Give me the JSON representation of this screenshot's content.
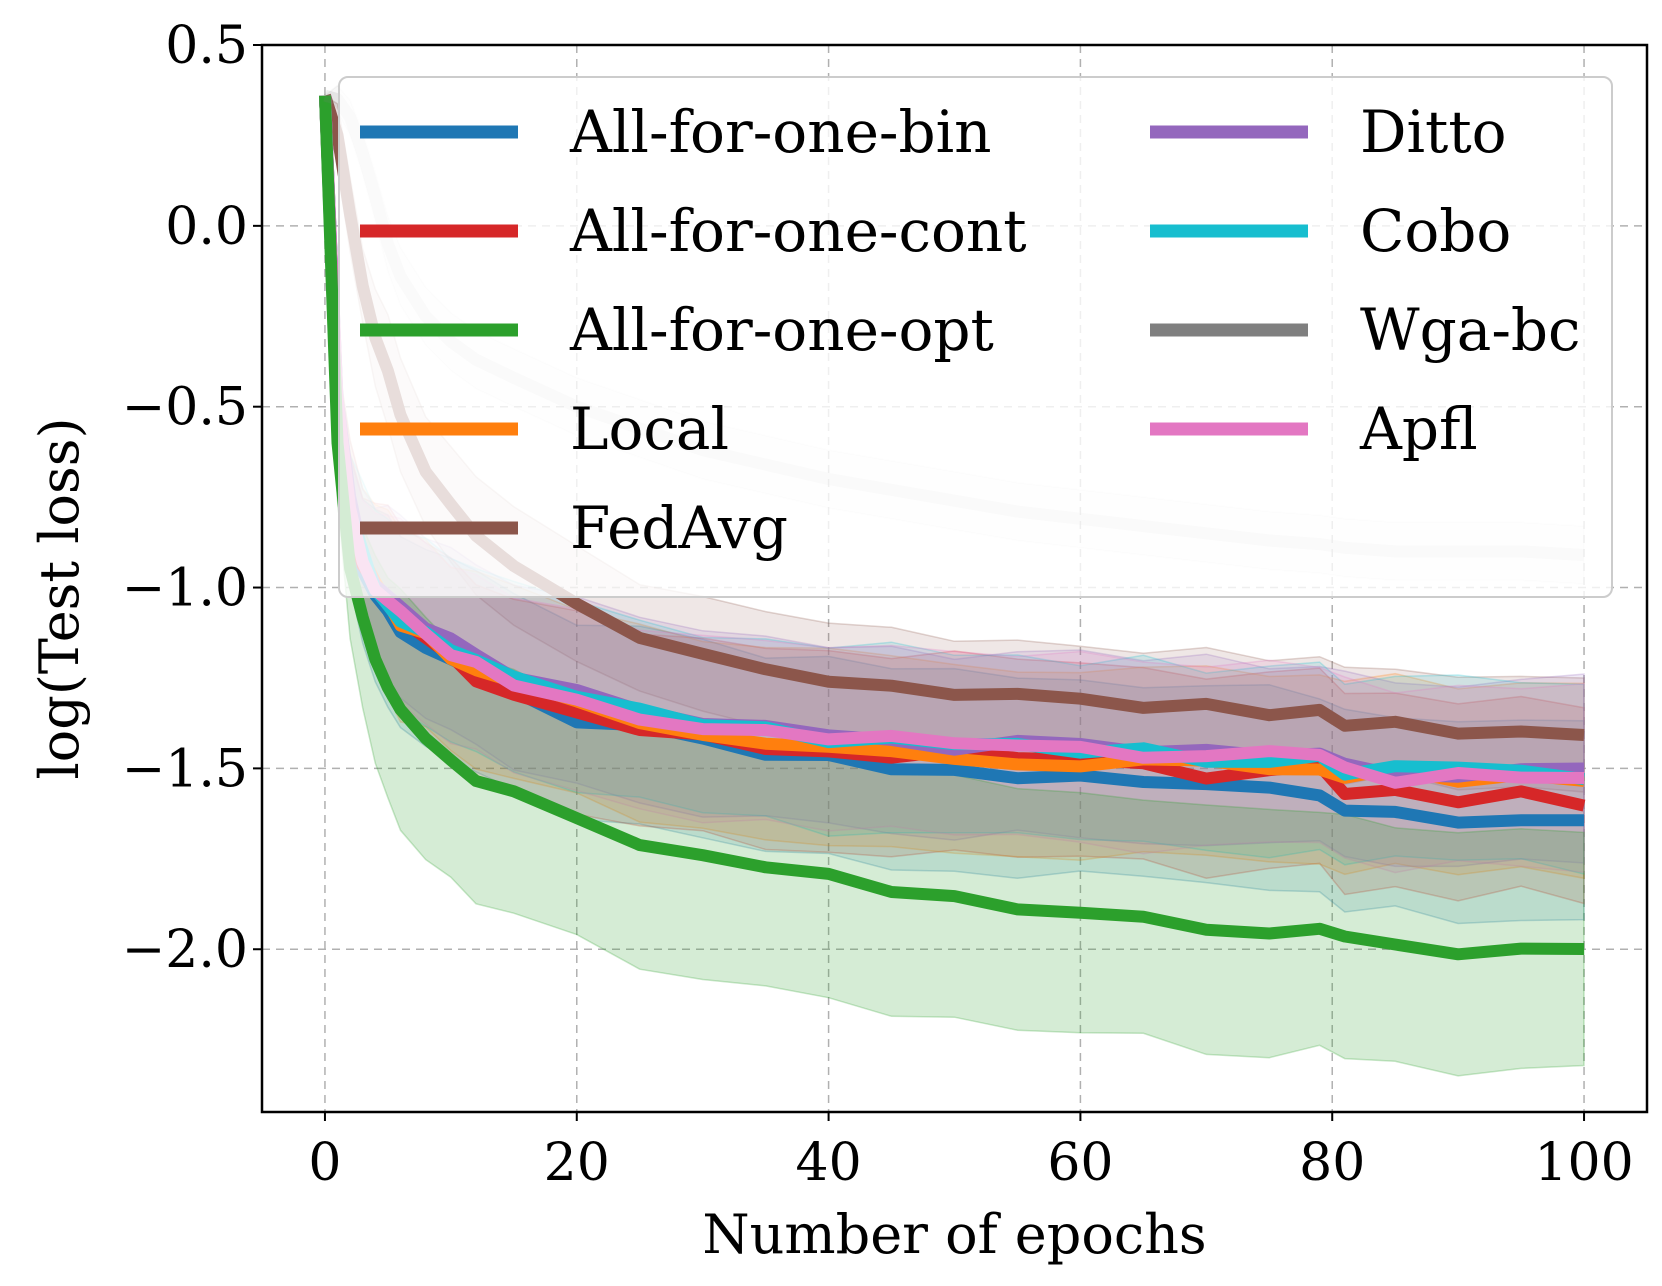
{
  "chart_data": {
    "type": "line",
    "xlabel": "Number of epochs",
    "ylabel": "log(Test loss)",
    "xlim": [
      -5,
      105
    ],
    "ylim": [
      -2.45,
      0.5
    ],
    "xticks": [
      0,
      20,
      40,
      60,
      80,
      100
    ],
    "yticks": [
      0.5,
      0.0,
      -0.5,
      -1.0,
      -1.5,
      -2.0
    ],
    "xtick_labels": [
      "0",
      "20",
      "40",
      "60",
      "80",
      "100"
    ],
    "ytick_labels": [
      "0.5",
      "0.0",
      "−0.5",
      "−1.0",
      "−1.5",
      "−2.0"
    ],
    "grid": true,
    "legend_position": "upper-right",
    "legend_columns": 2,
    "x": [
      0,
      1,
      2,
      3,
      4,
      5,
      6,
      8,
      10,
      12,
      15,
      20,
      25,
      30,
      35,
      40,
      45,
      50,
      55,
      60,
      65,
      70,
      75,
      79,
      81,
      85,
      90,
      95,
      100
    ],
    "series": [
      {
        "name": "All-for-one-bin",
        "color": "#1f77b4",
        "band": 0.26,
        "values": [
          0.36,
          -0.55,
          -0.82,
          -0.95,
          -1.02,
          -1.07,
          -1.11,
          -1.16,
          -1.2,
          -1.25,
          -1.3,
          -1.36,
          -1.4,
          -1.43,
          -1.46,
          -1.48,
          -1.5,
          -1.51,
          -1.52,
          -1.53,
          -1.54,
          -1.55,
          -1.55,
          -1.56,
          -1.61,
          -1.62,
          -1.63,
          -1.63,
          -1.64
        ]
      },
      {
        "name": "All-for-one-cont",
        "color": "#d62728",
        "band": 0.26,
        "values": [
          0.36,
          -0.52,
          -0.8,
          -0.93,
          -1.0,
          -1.05,
          -1.09,
          -1.14,
          -1.19,
          -1.24,
          -1.3,
          -1.35,
          -1.39,
          -1.42,
          -1.44,
          -1.45,
          -1.46,
          -1.47,
          -1.48,
          -1.49,
          -1.5,
          -1.51,
          -1.51,
          -1.51,
          -1.56,
          -1.57,
          -1.58,
          -1.58,
          -1.59
        ]
      },
      {
        "name": "All-for-one-opt",
        "color": "#2ca02c",
        "band": 0.32,
        "values": [
          0.36,
          -0.6,
          -0.94,
          -1.1,
          -1.2,
          -1.28,
          -1.34,
          -1.42,
          -1.48,
          -1.53,
          -1.58,
          -1.65,
          -1.7,
          -1.75,
          -1.78,
          -1.81,
          -1.84,
          -1.87,
          -1.89,
          -1.9,
          -1.91,
          -1.93,
          -1.94,
          -1.94,
          -1.98,
          -1.99,
          -2.0,
          -2.0,
          -2.01
        ]
      },
      {
        "name": "Local",
        "color": "#ff7f0e",
        "band": 0.25,
        "values": [
          0.36,
          -0.5,
          -0.78,
          -0.92,
          -1.0,
          -1.05,
          -1.09,
          -1.14,
          -1.18,
          -1.22,
          -1.27,
          -1.32,
          -1.36,
          -1.39,
          -1.42,
          -1.44,
          -1.45,
          -1.46,
          -1.47,
          -1.48,
          -1.48,
          -1.49,
          -1.49,
          -1.49,
          -1.51,
          -1.52,
          -1.52,
          -1.53,
          -1.53
        ]
      },
      {
        "name": "FedAvg",
        "color": "#8c564b",
        "band": 0.14,
        "values": [
          0.36,
          0.25,
          0.05,
          -0.15,
          -0.3,
          -0.42,
          -0.52,
          -0.66,
          -0.77,
          -0.86,
          -0.95,
          -1.05,
          -1.12,
          -1.18,
          -1.22,
          -1.25,
          -1.27,
          -1.29,
          -1.31,
          -1.32,
          -1.33,
          -1.34,
          -1.35,
          -1.35,
          -1.38,
          -1.39,
          -1.4,
          -1.4,
          -1.41
        ]
      },
      {
        "name": "Ditto",
        "color": "#9467bd",
        "band": 0.24,
        "values": [
          0.36,
          -0.48,
          -0.76,
          -0.9,
          -0.98,
          -1.03,
          -1.07,
          -1.12,
          -1.16,
          -1.2,
          -1.25,
          -1.3,
          -1.34,
          -1.37,
          -1.39,
          -1.41,
          -1.42,
          -1.43,
          -1.44,
          -1.45,
          -1.46,
          -1.46,
          -1.47,
          -1.47,
          -1.5,
          -1.51,
          -1.51,
          -1.52,
          -1.52
        ]
      },
      {
        "name": "Cobo",
        "color": "#17becf",
        "band": 0.24,
        "values": [
          0.36,
          -0.49,
          -0.77,
          -0.91,
          -0.99,
          -1.04,
          -1.08,
          -1.13,
          -1.17,
          -1.21,
          -1.26,
          -1.31,
          -1.35,
          -1.38,
          -1.4,
          -1.42,
          -1.43,
          -1.44,
          -1.45,
          -1.46,
          -1.46,
          -1.47,
          -1.47,
          -1.47,
          -1.5,
          -1.51,
          -1.51,
          -1.52,
          -1.52
        ]
      },
      {
        "name": "Wga-bc",
        "color": "#7f7f7f",
        "band": 0.08,
        "faded": true,
        "values": [
          0.36,
          0.35,
          0.3,
          0.2,
          0.08,
          -0.05,
          -0.14,
          -0.25,
          -0.32,
          -0.37,
          -0.42,
          -0.5,
          -0.56,
          -0.62,
          -0.66,
          -0.7,
          -0.73,
          -0.76,
          -0.79,
          -0.81,
          -0.83,
          -0.85,
          -0.87,
          -0.88,
          -0.89,
          -0.9,
          -0.9,
          -0.9,
          -0.91
        ]
      },
      {
        "name": "Apfl",
        "color": "#e377c2",
        "band": 0.24,
        "values": [
          0.36,
          -0.48,
          -0.77,
          -0.91,
          -0.99,
          -1.04,
          -1.08,
          -1.13,
          -1.17,
          -1.21,
          -1.26,
          -1.31,
          -1.35,
          -1.38,
          -1.4,
          -1.42,
          -1.43,
          -1.44,
          -1.45,
          -1.46,
          -1.46,
          -1.47,
          -1.47,
          -1.47,
          -1.51,
          -1.52,
          -1.53,
          -1.54,
          -1.54
        ]
      }
    ]
  }
}
